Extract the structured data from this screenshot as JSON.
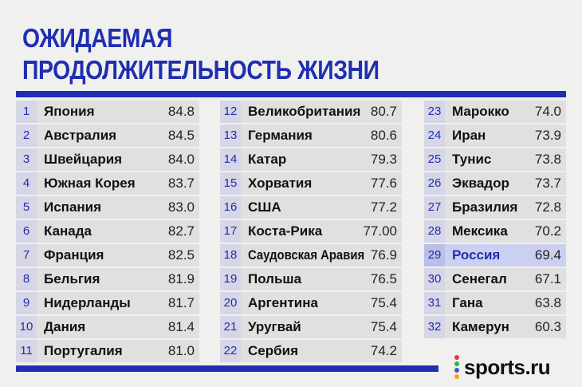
{
  "title": {
    "line1": "ОЖИДАЕМАЯ",
    "line2": "ПРОДОЛЖИТЕЛЬНОСТЬ ЖИЗНИ"
  },
  "columns": [
    [
      {
        "rank": "1",
        "country": "Япония",
        "value": "84.8"
      },
      {
        "rank": "2",
        "country": "Австралия",
        "value": "84.5"
      },
      {
        "rank": "3",
        "country": "Швейцария",
        "value": "84.0"
      },
      {
        "rank": "4",
        "country": "Южная Корея",
        "value": "83.7"
      },
      {
        "rank": "5",
        "country": "Испания",
        "value": "83.0"
      },
      {
        "rank": "6",
        "country": "Канада",
        "value": "82.7"
      },
      {
        "rank": "7",
        "country": "Франция",
        "value": "82.5"
      },
      {
        "rank": "8",
        "country": "Бельгия",
        "value": "81.9"
      },
      {
        "rank": "9",
        "country": "Нидерланды",
        "value": "81.7"
      },
      {
        "rank": "10",
        "country": "Дания",
        "value": "81.4"
      },
      {
        "rank": "11",
        "country": "Португалия",
        "value": "81.0"
      }
    ],
    [
      {
        "rank": "12",
        "country": "Великобритания",
        "value": "80.7"
      },
      {
        "rank": "13",
        "country": "Германия",
        "value": "80.6"
      },
      {
        "rank": "14",
        "country": "Катар",
        "value": "79.3"
      },
      {
        "rank": "15",
        "country": "Хорватия",
        "value": "77.6"
      },
      {
        "rank": "16",
        "country": "США",
        "value": "77.2"
      },
      {
        "rank": "17",
        "country": "Коста-Рика",
        "value": "77.00"
      },
      {
        "rank": "18",
        "country": "Саудовская Аравия",
        "value": "76.9"
      },
      {
        "rank": "19",
        "country": "Польша",
        "value": "76.5"
      },
      {
        "rank": "20",
        "country": "Аргентина",
        "value": "75.4"
      },
      {
        "rank": "21",
        "country": "Уругвай",
        "value": "75.4"
      },
      {
        "rank": "22",
        "country": "Сербия",
        "value": "74.2"
      }
    ],
    [
      {
        "rank": "23",
        "country": "Марокко",
        "value": "74.0"
      },
      {
        "rank": "24",
        "country": "Иран",
        "value": "73.9"
      },
      {
        "rank": "25",
        "country": "Тунис",
        "value": "73.8"
      },
      {
        "rank": "26",
        "country": "Эквадор",
        "value": "73.7"
      },
      {
        "rank": "27",
        "country": "Бразилия",
        "value": "72.8"
      },
      {
        "rank": "28",
        "country": "Мексика",
        "value": "70.2"
      },
      {
        "rank": "29",
        "country": "Россия",
        "value": "69.4",
        "highlight": true
      },
      {
        "rank": "30",
        "country": "Сенегал",
        "value": "67.1"
      },
      {
        "rank": "31",
        "country": "Гана",
        "value": "63.8"
      },
      {
        "rank": "32",
        "country": "Камерун",
        "value": "60.3"
      }
    ]
  ],
  "logo": {
    "text": "sports.ru",
    "dot_colors": [
      "#e5394b",
      "#2fb344",
      "#3b5bdb",
      "#f2a900"
    ]
  },
  "colors": {
    "accent": "#1f2fb0",
    "row_bg": "#e0e0df",
    "highlight_bg": "#ccd0f0"
  }
}
